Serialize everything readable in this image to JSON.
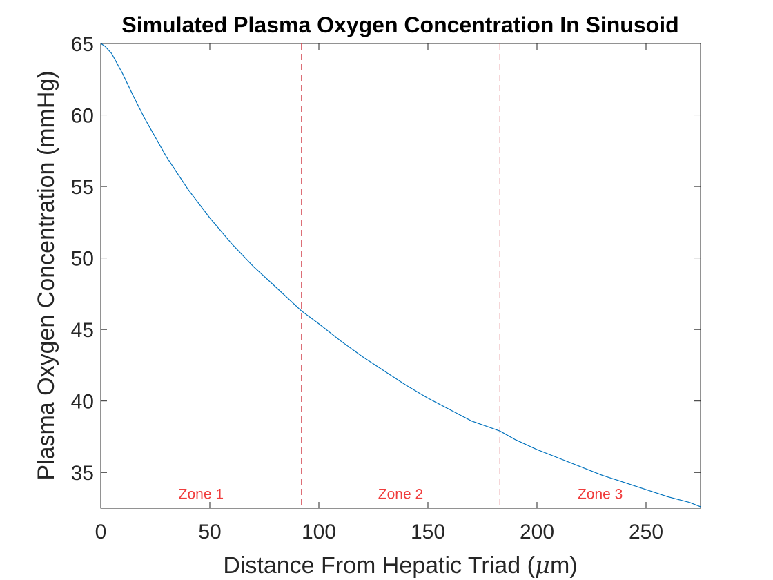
{
  "chart_data": {
    "type": "line",
    "title": "Simulated Plasma Oxygen Concentration In Sinusoid",
    "xlabel_prefix": "Distance From Hepatic Triad (",
    "xlabel_mu": "μ",
    "xlabel_suffix": "m)",
    "ylabel": "Plasma Oxygen Concentration (mmHg)",
    "xlim": [
      0,
      275
    ],
    "ylim": [
      32.5,
      65
    ],
    "xticks": [
      0,
      50,
      100,
      150,
      200,
      250
    ],
    "yticks": [
      35,
      40,
      45,
      50,
      55,
      60,
      65
    ],
    "grid": false,
    "series": [
      {
        "x": [
          0,
          2,
          5,
          10,
          15,
          20,
          30,
          40,
          50,
          60,
          70,
          80,
          92,
          100,
          110,
          120,
          130,
          140,
          150,
          160,
          170,
          183,
          190,
          200,
          210,
          220,
          230,
          240,
          250,
          260,
          270,
          275
        ],
        "y": [
          65.0,
          64.8,
          64.3,
          62.9,
          61.3,
          59.8,
          57.1,
          54.8,
          52.8,
          51.0,
          49.4,
          48.0,
          46.3,
          45.4,
          44.2,
          43.1,
          42.1,
          41.1,
          40.2,
          39.4,
          38.6,
          37.9,
          37.3,
          36.6,
          36.0,
          35.4,
          34.8,
          34.3,
          33.8,
          33.3,
          32.9,
          32.6
        ]
      }
    ],
    "zone_boundaries": [
      92,
      183
    ],
    "zones": [
      {
        "label": "Zone 1",
        "x": 46
      },
      {
        "label": "Zone 2",
        "x": 137.5
      },
      {
        "label": "Zone 3",
        "x": 229
      }
    ],
    "zone_label_y": 33.5,
    "colors": {
      "line": "#0072BD",
      "zone": "#F03C3C",
      "divider": "#D24650",
      "axis": "#262626"
    }
  }
}
